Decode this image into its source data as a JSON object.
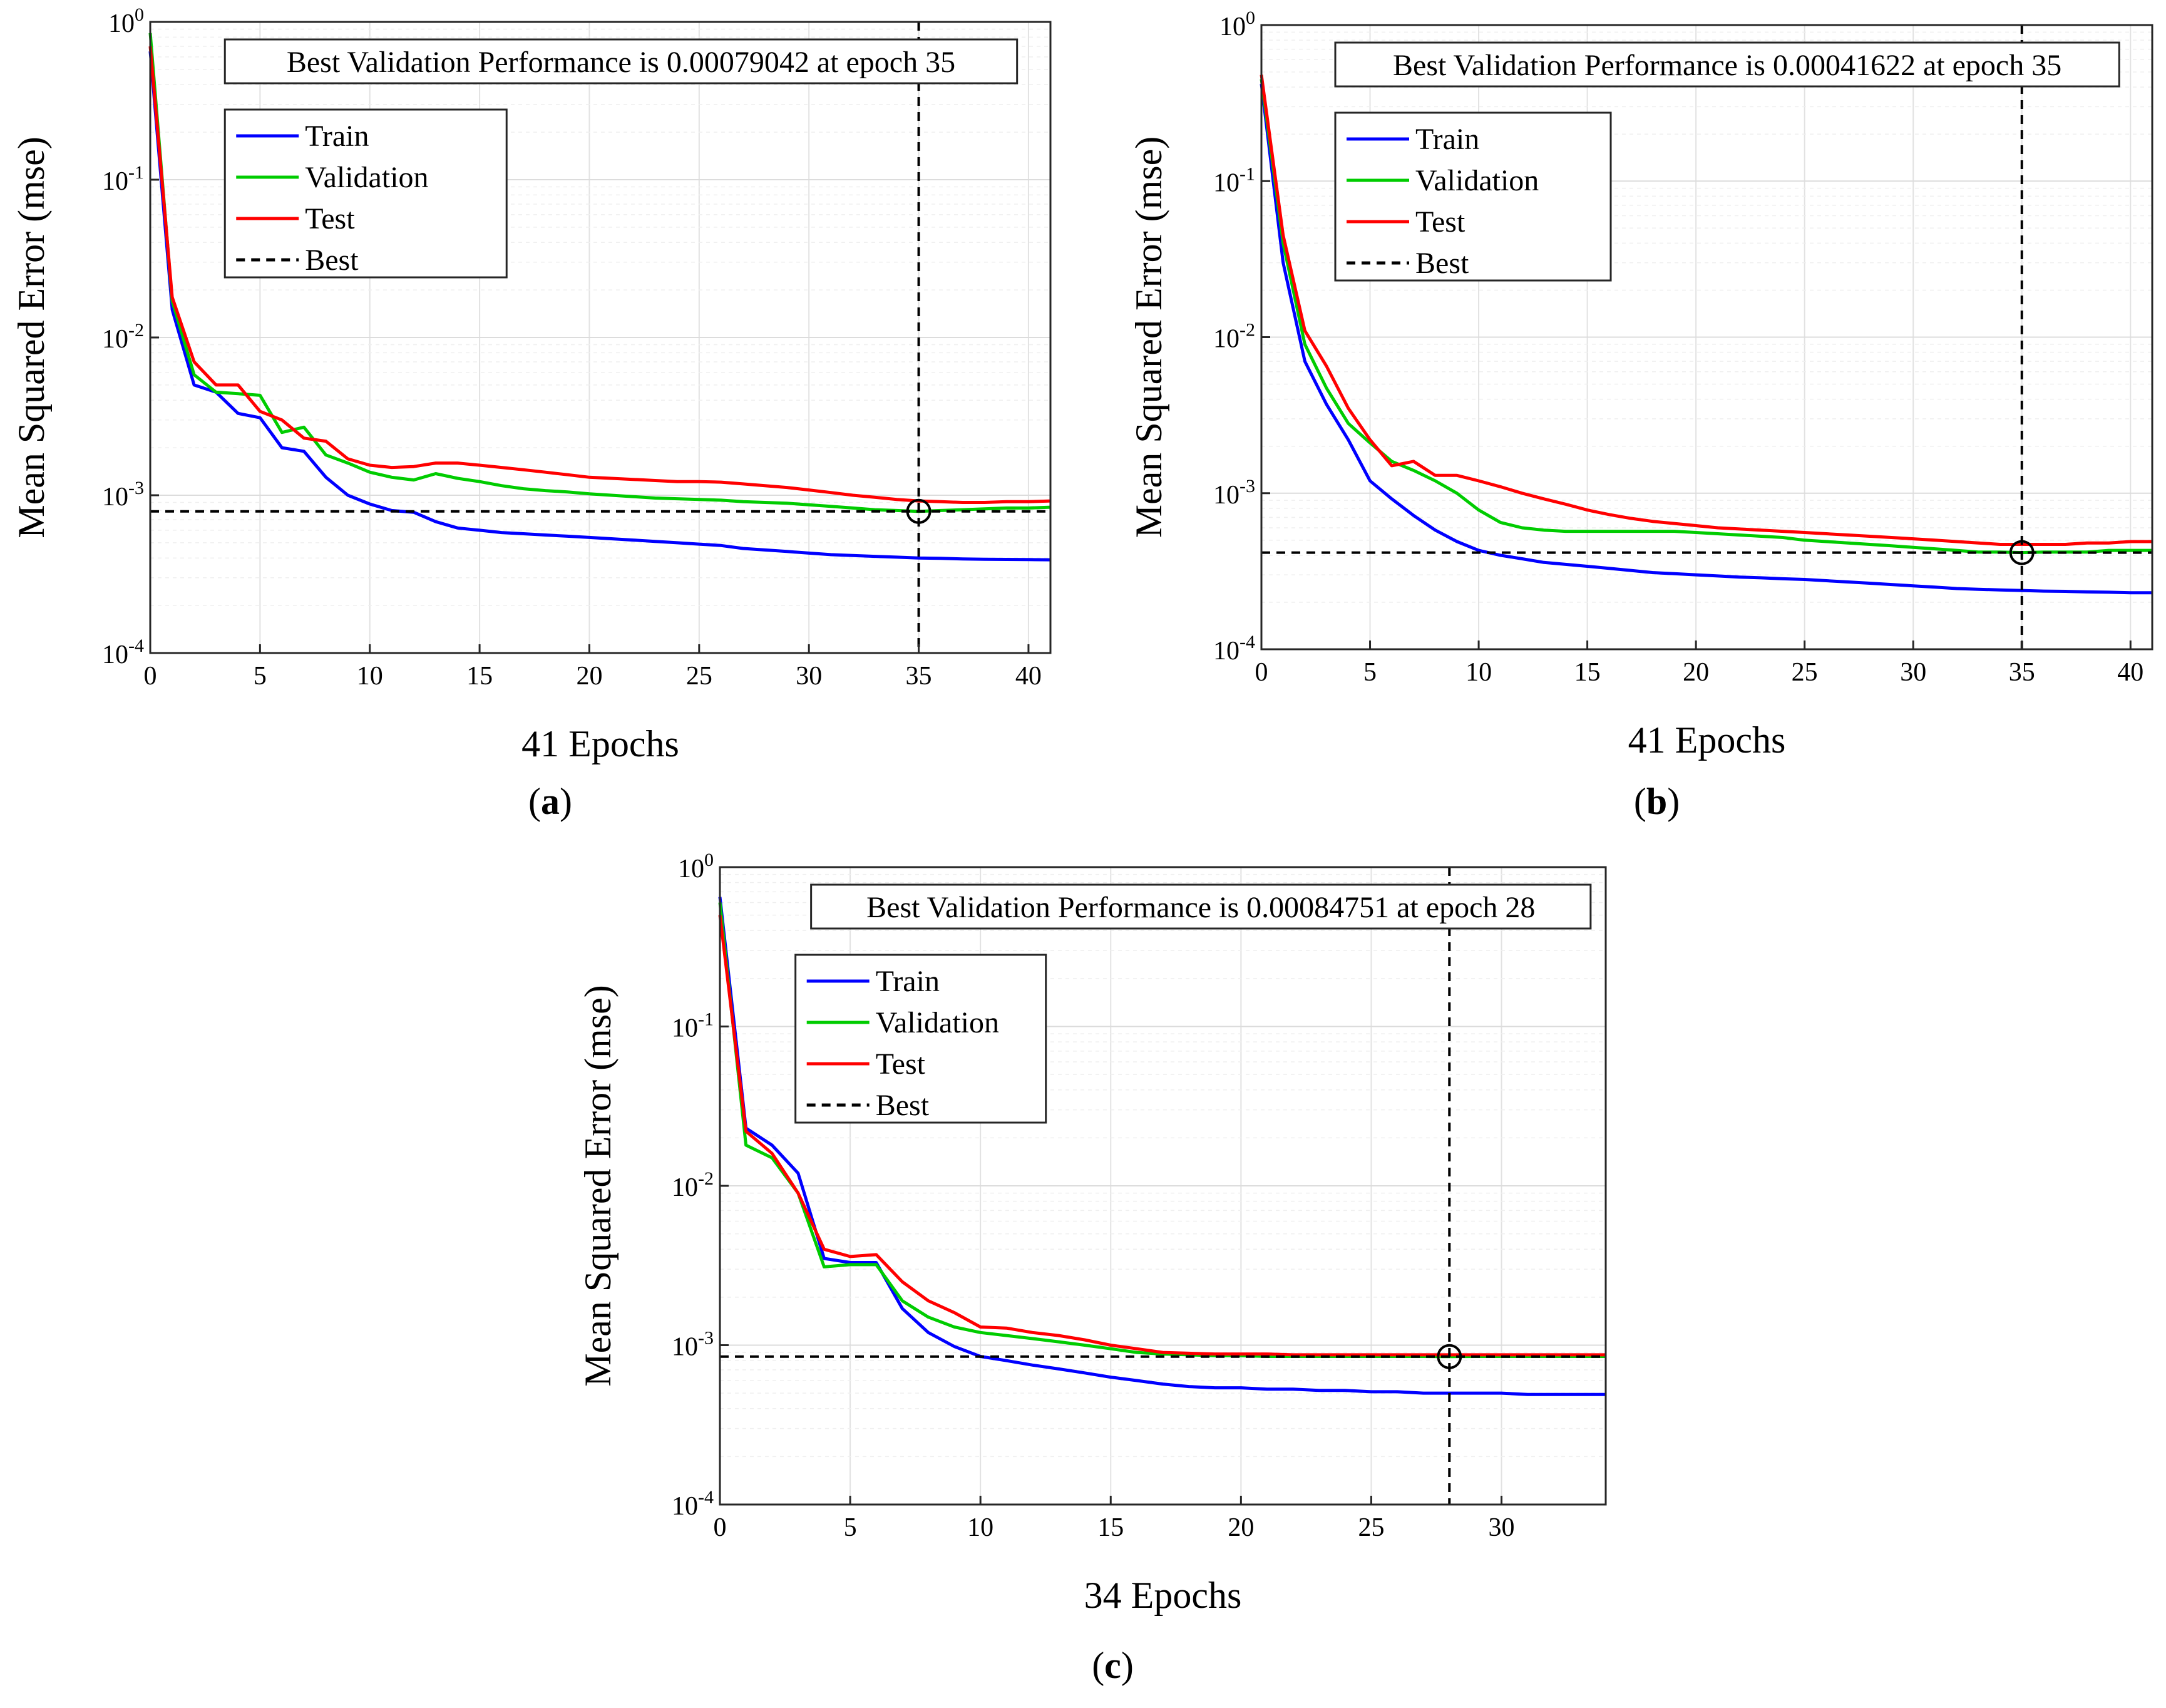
{
  "chart_data": [
    {
      "type": "line",
      "panel_label": "a",
      "title": "Best Validation Performance is 0.00079042 at epoch 35",
      "xlabel": "41 Epochs",
      "ylabel": "Mean Squared Error  (mse)",
      "xlim": [
        0,
        41
      ],
      "ylim_exponents": [
        -4,
        0
      ],
      "x_ticks": [
        0,
        5,
        10,
        15,
        20,
        25,
        30,
        35,
        40
      ],
      "y_tick_labels": [
        {
          "base": "10",
          "exp": "0"
        },
        {
          "base": "10",
          "exp": "-1"
        },
        {
          "base": "10",
          "exp": "-2"
        },
        {
          "base": "10",
          "exp": "-3"
        },
        {
          "base": "10",
          "exp": "-4"
        }
      ],
      "grid": true,
      "legend_position": "top-left",
      "best": {
        "epoch": 35,
        "value": 0.00079042
      },
      "series": [
        {
          "name": "Train",
          "color": "#0000ff",
          "x": [
            0,
            1,
            2,
            3,
            4,
            5,
            6,
            7,
            8,
            9,
            10,
            11,
            12,
            13,
            14,
            15,
            16,
            17,
            18,
            19,
            20,
            21,
            22,
            23,
            24,
            25,
            26,
            27,
            28,
            29,
            30,
            31,
            32,
            33,
            34,
            35,
            36,
            37,
            38,
            39,
            40,
            41
          ],
          "values": [
            0.65,
            0.015,
            0.005,
            0.0045,
            0.0033,
            0.0031,
            0.002,
            0.0019,
            0.0013,
            0.001,
            0.00088,
            0.0008,
            0.00078,
            0.00068,
            0.00062,
            0.0006,
            0.00058,
            0.00057,
            0.00056,
            0.00055,
            0.00054,
            0.00053,
            0.00052,
            0.00051,
            0.0005,
            0.00049,
            0.00048,
            0.00046,
            0.00045,
            0.00044,
            0.00043,
            0.00042,
            0.000415,
            0.00041,
            0.000405,
            0.0004,
            0.000398,
            0.000395,
            0.000393,
            0.000392,
            0.000391,
            0.00039
          ]
        },
        {
          "name": "Validation",
          "color": "#00cc00",
          "x": [
            0,
            1,
            2,
            3,
            4,
            5,
            6,
            7,
            8,
            9,
            10,
            11,
            12,
            13,
            14,
            15,
            16,
            17,
            18,
            19,
            20,
            21,
            22,
            23,
            24,
            25,
            26,
            27,
            28,
            29,
            30,
            31,
            32,
            33,
            34,
            35,
            36,
            37,
            38,
            39,
            40,
            41
          ],
          "values": [
            0.85,
            0.017,
            0.0058,
            0.0045,
            0.0044,
            0.0043,
            0.0025,
            0.0027,
            0.0018,
            0.0016,
            0.0014,
            0.0013,
            0.00125,
            0.00137,
            0.00128,
            0.00122,
            0.00115,
            0.0011,
            0.00107,
            0.00105,
            0.00102,
            0.001,
            0.00098,
            0.00096,
            0.00095,
            0.00094,
            0.00093,
            0.00091,
            0.0009,
            0.00089,
            0.00087,
            0.00085,
            0.00083,
            0.00081,
            0.0008,
            0.00079042,
            0.0008,
            0.00081,
            0.00082,
            0.00083,
            0.00083,
            0.00084
          ]
        },
        {
          "name": "Test",
          "color": "#ff0000",
          "x": [
            0,
            1,
            2,
            3,
            4,
            5,
            6,
            7,
            8,
            9,
            10,
            11,
            12,
            13,
            14,
            15,
            16,
            17,
            18,
            19,
            20,
            21,
            22,
            23,
            24,
            25,
            26,
            27,
            28,
            29,
            30,
            31,
            32,
            33,
            34,
            35,
            36,
            37,
            38,
            39,
            40,
            41
          ],
          "values": [
            0.7,
            0.018,
            0.007,
            0.005,
            0.005,
            0.0034,
            0.003,
            0.0023,
            0.0022,
            0.0017,
            0.00155,
            0.0015,
            0.00152,
            0.0016,
            0.0016,
            0.00155,
            0.0015,
            0.00145,
            0.0014,
            0.00135,
            0.0013,
            0.00128,
            0.00126,
            0.00124,
            0.00122,
            0.00122,
            0.00121,
            0.00118,
            0.00115,
            0.00112,
            0.00108,
            0.00104,
            0.001,
            0.00097,
            0.00094,
            0.00092,
            0.00091,
            0.0009,
            0.0009,
            0.00091,
            0.00091,
            0.00092
          ]
        }
      ]
    },
    {
      "type": "line",
      "panel_label": "b",
      "title": "Best Validation Performance is 0.00041622 at epoch 35",
      "xlabel": "41 Epochs",
      "ylabel": "Mean Squared Error  (mse)",
      "xlim": [
        0,
        41
      ],
      "ylim_exponents": [
        -4,
        0
      ],
      "x_ticks": [
        0,
        5,
        10,
        15,
        20,
        25,
        30,
        35,
        40
      ],
      "y_tick_labels": [
        {
          "base": "10",
          "exp": "0"
        },
        {
          "base": "10",
          "exp": "-1"
        },
        {
          "base": "10",
          "exp": "-2"
        },
        {
          "base": "10",
          "exp": "-3"
        },
        {
          "base": "10",
          "exp": "-4"
        }
      ],
      "grid": true,
      "legend_position": "top-left",
      "best": {
        "epoch": 35,
        "value": 0.00041622
      },
      "series": [
        {
          "name": "Train",
          "color": "#0000ff",
          "x": [
            0,
            1,
            2,
            3,
            4,
            5,
            6,
            7,
            8,
            9,
            10,
            11,
            12,
            13,
            14,
            15,
            16,
            17,
            18,
            19,
            20,
            21,
            22,
            23,
            24,
            25,
            26,
            27,
            28,
            29,
            30,
            31,
            32,
            33,
            34,
            35,
            36,
            37,
            38,
            39,
            40,
            41
          ],
          "values": [
            0.42,
            0.03,
            0.007,
            0.0037,
            0.0022,
            0.0012,
            0.00092,
            0.00072,
            0.00058,
            0.00049,
            0.00043,
            0.0004,
            0.00038,
            0.00036,
            0.00035,
            0.00034,
            0.00033,
            0.00032,
            0.00031,
            0.000305,
            0.0003,
            0.000295,
            0.00029,
            0.000287,
            0.000283,
            0.00028,
            0.000275,
            0.00027,
            0.000265,
            0.00026,
            0.000255,
            0.00025,
            0.000245,
            0.000242,
            0.00024,
            0.000238,
            0.000236,
            0.000235,
            0.000233,
            0.000232,
            0.00023,
            0.00023
          ]
        },
        {
          "name": "Validation",
          "color": "#00cc00",
          "x": [
            0,
            1,
            2,
            3,
            4,
            5,
            6,
            7,
            8,
            9,
            10,
            11,
            12,
            13,
            14,
            15,
            16,
            17,
            18,
            19,
            20,
            21,
            22,
            23,
            24,
            25,
            26,
            27,
            28,
            29,
            30,
            31,
            32,
            33,
            34,
            35,
            36,
            37,
            38,
            39,
            40,
            41
          ],
          "values": [
            0.45,
            0.04,
            0.009,
            0.0047,
            0.0028,
            0.0021,
            0.0016,
            0.0014,
            0.0012,
            0.001,
            0.00078,
            0.00065,
            0.0006,
            0.00058,
            0.00057,
            0.00057,
            0.00057,
            0.00057,
            0.00057,
            0.00057,
            0.00056,
            0.00055,
            0.00054,
            0.00053,
            0.00052,
            0.0005,
            0.00049,
            0.00048,
            0.00047,
            0.00046,
            0.00045,
            0.00044,
            0.00043,
            0.00042,
            0.00042,
            0.00041622,
            0.00042,
            0.00042,
            0.00042,
            0.00043,
            0.00043,
            0.00043
          ]
        },
        {
          "name": "Test",
          "color": "#ff0000",
          "x": [
            0,
            1,
            2,
            3,
            4,
            5,
            6,
            7,
            8,
            9,
            10,
            11,
            12,
            13,
            14,
            15,
            16,
            17,
            18,
            19,
            20,
            21,
            22,
            23,
            24,
            25,
            26,
            27,
            28,
            29,
            30,
            31,
            32,
            33,
            34,
            35,
            36,
            37,
            38,
            39,
            40,
            41
          ],
          "values": [
            0.48,
            0.045,
            0.011,
            0.0065,
            0.0035,
            0.0022,
            0.0015,
            0.0016,
            0.0013,
            0.0013,
            0.0012,
            0.0011,
            0.001,
            0.00092,
            0.00085,
            0.00078,
            0.00073,
            0.00069,
            0.00066,
            0.00064,
            0.00062,
            0.0006,
            0.00059,
            0.00058,
            0.00057,
            0.00056,
            0.00055,
            0.00054,
            0.00053,
            0.00052,
            0.00051,
            0.0005,
            0.00049,
            0.00048,
            0.00047,
            0.00047,
            0.00047,
            0.00047,
            0.00048,
            0.00048,
            0.00049,
            0.00049
          ]
        }
      ]
    },
    {
      "type": "line",
      "panel_label": "c",
      "title": "Best Validation Performance is 0.00084751 at epoch 28",
      "xlabel": "34 Epochs",
      "ylabel": "Mean Squared Error  (mse)",
      "xlim": [
        0,
        34
      ],
      "ylim_exponents": [
        -4,
        0
      ],
      "x_ticks": [
        0,
        5,
        10,
        15,
        20,
        25,
        30
      ],
      "y_tick_labels": [
        {
          "base": "10",
          "exp": "0"
        },
        {
          "base": "10",
          "exp": "-1"
        },
        {
          "base": "10",
          "exp": "-2"
        },
        {
          "base": "10",
          "exp": "-3"
        },
        {
          "base": "10",
          "exp": "-4"
        }
      ],
      "grid": true,
      "legend_position": "top-left",
      "best": {
        "epoch": 28,
        "value": 0.00084751
      },
      "series": [
        {
          "name": "Train",
          "color": "#0000ff",
          "x": [
            0,
            1,
            2,
            3,
            4,
            5,
            6,
            7,
            8,
            9,
            10,
            11,
            12,
            13,
            14,
            15,
            16,
            17,
            18,
            19,
            20,
            21,
            22,
            23,
            24,
            25,
            26,
            27,
            28,
            29,
            30,
            31,
            32,
            33,
            34
          ],
          "values": [
            0.65,
            0.023,
            0.018,
            0.012,
            0.0035,
            0.0033,
            0.0033,
            0.0017,
            0.0012,
            0.00098,
            0.00085,
            0.0008,
            0.00075,
            0.00071,
            0.00067,
            0.00063,
            0.0006,
            0.00057,
            0.00055,
            0.00054,
            0.00054,
            0.00053,
            0.00053,
            0.00052,
            0.00052,
            0.00051,
            0.00051,
            0.0005,
            0.0005,
            0.0005,
            0.0005,
            0.00049,
            0.00049,
            0.00049,
            0.00049
          ]
        },
        {
          "name": "Validation",
          "color": "#00cc00",
          "x": [
            0,
            1,
            2,
            3,
            4,
            5,
            6,
            7,
            8,
            9,
            10,
            11,
            12,
            13,
            14,
            15,
            16,
            17,
            18,
            19,
            20,
            21,
            22,
            23,
            24,
            25,
            26,
            27,
            28,
            29,
            30,
            31,
            32,
            33,
            34
          ],
          "values": [
            0.6,
            0.018,
            0.015,
            0.009,
            0.0031,
            0.0032,
            0.0032,
            0.0019,
            0.0015,
            0.0013,
            0.0012,
            0.00115,
            0.0011,
            0.00105,
            0.001,
            0.00095,
            0.0009,
            0.00088,
            0.00087,
            0.00086,
            0.00086,
            0.00085,
            0.00085,
            0.00085,
            0.00085,
            0.00085,
            0.00085,
            0.00085,
            0.00084751,
            0.00085,
            0.00085,
            0.00085,
            0.00085,
            0.00085,
            0.00085
          ]
        },
        {
          "name": "Test",
          "color": "#ff0000",
          "x": [
            0,
            1,
            2,
            3,
            4,
            5,
            6,
            7,
            8,
            9,
            10,
            11,
            12,
            13,
            14,
            15,
            16,
            17,
            18,
            19,
            20,
            21,
            22,
            23,
            24,
            25,
            26,
            27,
            28,
            29,
            30,
            31,
            32,
            33,
            34
          ],
          "values": [
            0.5,
            0.022,
            0.016,
            0.009,
            0.004,
            0.0036,
            0.0037,
            0.0025,
            0.0019,
            0.0016,
            0.0013,
            0.00128,
            0.0012,
            0.00115,
            0.00108,
            0.001,
            0.00095,
            0.0009,
            0.00089,
            0.00088,
            0.00088,
            0.00088,
            0.00087,
            0.00087,
            0.00087,
            0.00087,
            0.00087,
            0.00087,
            0.00087,
            0.00087,
            0.00087,
            0.00087,
            0.00087,
            0.00087,
            0.00087
          ]
        }
      ]
    }
  ]
}
